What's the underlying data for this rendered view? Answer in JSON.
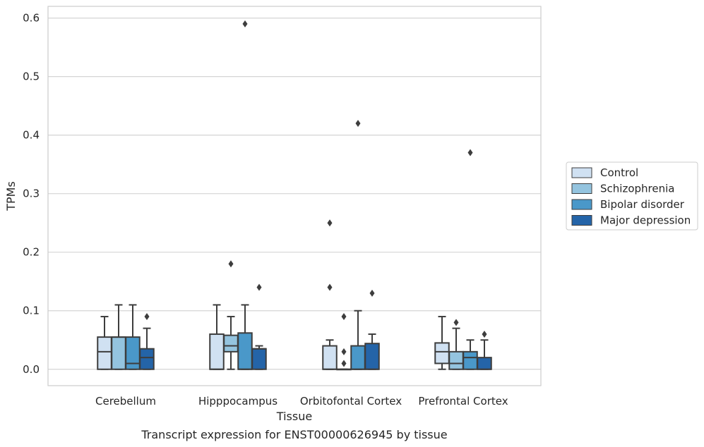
{
  "caption": "Transcript expression for ENST00000626945 by tissue",
  "chart_data": {
    "type": "box",
    "xlabel": "Tissue",
    "ylabel": "TPMs",
    "ylim": [
      -0.028,
      0.62
    ],
    "yticks": [
      0.0,
      0.1,
      0.2,
      0.3,
      0.4,
      0.5,
      0.6
    ],
    "ytick_labels": [
      "0.0",
      "0.1",
      "0.2",
      "0.3",
      "0.4",
      "0.5",
      "0.6"
    ],
    "categories": [
      "Cerebellum",
      "Hipppocampus",
      "Orbitofontal Cortex",
      "Prefrontal Cortex"
    ],
    "grid": "horizontal",
    "legend_position": "right",
    "series": [
      {
        "name": "Control",
        "color": "#d0e1f2",
        "boxes": [
          {
            "q1": 0.0,
            "median": 0.03,
            "q3": 0.055,
            "whislo": 0.0,
            "whishi": 0.09,
            "fliers": []
          },
          {
            "q1": 0.0,
            "median": 0.0,
            "q3": 0.06,
            "whislo": 0.0,
            "whishi": 0.11,
            "fliers": []
          },
          {
            "q1": 0.0,
            "median": 0.0,
            "q3": 0.04,
            "whislo": 0.0,
            "whishi": 0.05,
            "fliers": [
              0.25,
              0.14
            ]
          },
          {
            "q1": 0.01,
            "median": 0.03,
            "q3": 0.045,
            "whislo": 0.0,
            "whishi": 0.09,
            "fliers": []
          }
        ]
      },
      {
        "name": "Schizophrenia",
        "color": "#94c4df",
        "boxes": [
          {
            "q1": 0.0,
            "median": 0.055,
            "q3": 0.055,
            "whislo": 0.0,
            "whishi": 0.11,
            "fliers": []
          },
          {
            "q1": 0.03,
            "median": 0.04,
            "q3": 0.058,
            "whislo": 0.0,
            "whishi": 0.09,
            "fliers": [
              0.18
            ]
          },
          {
            "q1": 0.0,
            "median": 0.0,
            "q3": 0.0,
            "whislo": 0.0,
            "whishi": 0.0,
            "fliers": [
              0.09,
              0.03,
              0.01
            ]
          },
          {
            "q1": 0.0,
            "median": 0.01,
            "q3": 0.03,
            "whislo": 0.0,
            "whishi": 0.07,
            "fliers": [
              0.08
            ]
          }
        ]
      },
      {
        "name": "Bipolar disorder",
        "color": "#4a98c9",
        "boxes": [
          {
            "q1": 0.0,
            "median": 0.01,
            "q3": 0.055,
            "whislo": 0.0,
            "whishi": 0.11,
            "fliers": []
          },
          {
            "q1": 0.0,
            "median": 0.0,
            "q3": 0.062,
            "whislo": 0.0,
            "whishi": 0.11,
            "fliers": [
              0.59
            ]
          },
          {
            "q1": 0.0,
            "median": 0.0,
            "q3": 0.04,
            "whislo": 0.0,
            "whishi": 0.1,
            "fliers": [
              0.42
            ]
          },
          {
            "q1": 0.0,
            "median": 0.02,
            "q3": 0.03,
            "whislo": 0.0,
            "whishi": 0.05,
            "fliers": [
              0.37
            ]
          }
        ]
      },
      {
        "name": "Major depression",
        "color": "#2464a8",
        "boxes": [
          {
            "q1": 0.0,
            "median": 0.02,
            "q3": 0.035,
            "whislo": 0.0,
            "whishi": 0.07,
            "fliers": [
              0.09
            ]
          },
          {
            "q1": 0.0,
            "median": 0.035,
            "q3": 0.035,
            "whislo": 0.0,
            "whishi": 0.04,
            "fliers": [
              0.14
            ]
          },
          {
            "q1": 0.0,
            "median": 0.0,
            "q3": 0.044,
            "whislo": 0.0,
            "whishi": 0.06,
            "fliers": [
              0.13
            ]
          },
          {
            "q1": 0.0,
            "median": 0.0,
            "q3": 0.02,
            "whislo": 0.0,
            "whishi": 0.05,
            "fliers": [
              0.06
            ]
          }
        ]
      }
    ]
  }
}
